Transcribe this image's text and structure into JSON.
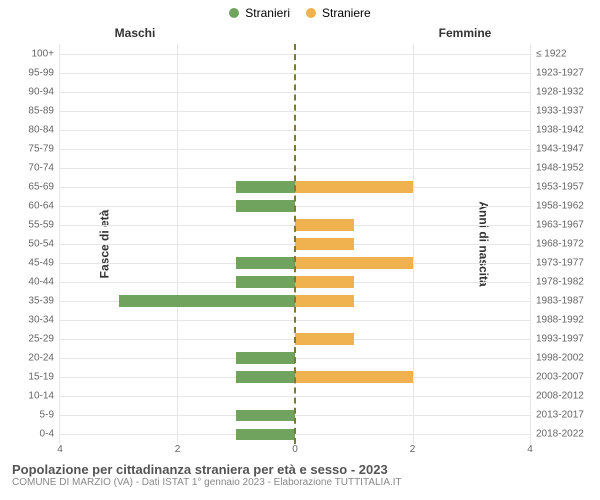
{
  "legend": {
    "items": [
      {
        "label": "Stranieri",
        "color": "#70a35e"
      },
      {
        "label": "Straniere",
        "color": "#f0b24f"
      }
    ]
  },
  "column_headers": {
    "left": "Maschi",
    "right": "Femmine"
  },
  "axis_titles": {
    "left": "Fasce di età",
    "right": "Anni di nascita"
  },
  "x_axis": {
    "max": 4,
    "ticks": [
      0,
      2,
      4
    ],
    "grid_color": "#e6e6e6"
  },
  "center_line_color": "#7a7a33",
  "bar_colors": {
    "male": "#70a35e",
    "female": "#f0b24f"
  },
  "background_color": "#ffffff",
  "row_height_ratio": 0.62,
  "rows": [
    {
      "age": "100+",
      "birth": "≤ 1922",
      "m": 0,
      "f": 0
    },
    {
      "age": "95-99",
      "birth": "1923-1927",
      "m": 0,
      "f": 0
    },
    {
      "age": "90-94",
      "birth": "1928-1932",
      "m": 0,
      "f": 0
    },
    {
      "age": "85-89",
      "birth": "1933-1937",
      "m": 0,
      "f": 0
    },
    {
      "age": "80-84",
      "birth": "1938-1942",
      "m": 0,
      "f": 0
    },
    {
      "age": "75-79",
      "birth": "1943-1947",
      "m": 0,
      "f": 0
    },
    {
      "age": "70-74",
      "birth": "1948-1952",
      "m": 0,
      "f": 0
    },
    {
      "age": "65-69",
      "birth": "1953-1957",
      "m": 1,
      "f": 2
    },
    {
      "age": "60-64",
      "birth": "1958-1962",
      "m": 1,
      "f": 0
    },
    {
      "age": "55-59",
      "birth": "1963-1967",
      "m": 0,
      "f": 1
    },
    {
      "age": "50-54",
      "birth": "1968-1972",
      "m": 0,
      "f": 1
    },
    {
      "age": "45-49",
      "birth": "1973-1977",
      "m": 1,
      "f": 2
    },
    {
      "age": "40-44",
      "birth": "1978-1982",
      "m": 1,
      "f": 1
    },
    {
      "age": "35-39",
      "birth": "1983-1987",
      "m": 3,
      "f": 1
    },
    {
      "age": "30-34",
      "birth": "1988-1992",
      "m": 0,
      "f": 0
    },
    {
      "age": "25-29",
      "birth": "1993-1997",
      "m": 0,
      "f": 1
    },
    {
      "age": "20-24",
      "birth": "1998-2002",
      "m": 1,
      "f": 0
    },
    {
      "age": "15-19",
      "birth": "2003-2007",
      "m": 1,
      "f": 2
    },
    {
      "age": "10-14",
      "birth": "2008-2012",
      "m": 0,
      "f": 0
    },
    {
      "age": "5-9",
      "birth": "2013-2017",
      "m": 1,
      "f": 0
    },
    {
      "age": "0-4",
      "birth": "2018-2022",
      "m": 1,
      "f": 0
    }
  ],
  "footer": {
    "title": "Popolazione per cittadinanza straniera per età e sesso - 2023",
    "subtitle": "COMUNE DI MARZIO (VA) - Dati ISTAT 1° gennaio 2023 - Elaborazione TUTTITALIA.IT"
  }
}
